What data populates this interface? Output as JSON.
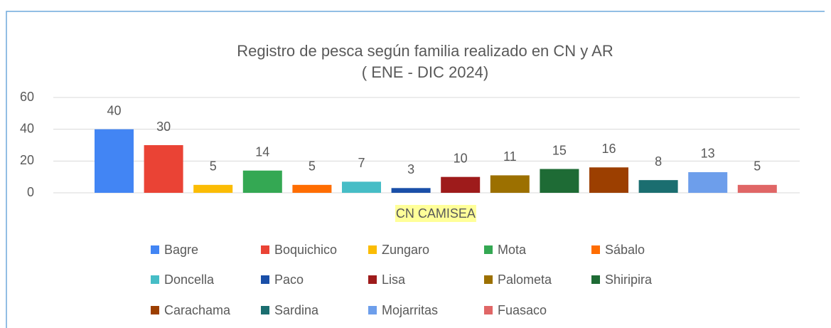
{
  "chart_data": {
    "type": "bar",
    "title": "Registro de pesca según familia realizado en CN y AR",
    "subtitle": "( ENE - DIC 2024)",
    "categories": [
      "CN CAMISEA"
    ],
    "series": [
      {
        "name": "Bagre",
        "color": "#4285f4",
        "values": [
          40
        ]
      },
      {
        "name": "Boquichico",
        "color": "#ea4335",
        "values": [
          30
        ]
      },
      {
        "name": "Zungaro",
        "color": "#fbbc04",
        "values": [
          5
        ]
      },
      {
        "name": "Mota",
        "color": "#34a853",
        "values": [
          14
        ]
      },
      {
        "name": "Sábalo",
        "color": "#ff6d01",
        "values": [
          5
        ]
      },
      {
        "name": "Doncella",
        "color": "#46bdc6",
        "values": [
          7
        ]
      },
      {
        "name": "Paco",
        "color": "#1a4fa8",
        "values": [
          3
        ]
      },
      {
        "name": "Lisa",
        "color": "#9e1b1b",
        "values": [
          10
        ]
      },
      {
        "name": "Palometa",
        "color": "#9c7000",
        "values": [
          11
        ]
      },
      {
        "name": "Shiripira",
        "color": "#1e6b35",
        "values": [
          15
        ]
      },
      {
        "name": "Carachama",
        "color": "#9c3f00",
        "values": [
          16
        ]
      },
      {
        "name": "Sardina",
        "color": "#1b6e70",
        "values": [
          8
        ]
      },
      {
        "name": "Mojarritas",
        "color": "#6d9eeb",
        "values": [
          13
        ]
      },
      {
        "name": "Fuasaco",
        "color": "#e06666",
        "values": [
          5
        ]
      }
    ],
    "ylim": [
      0,
      60
    ],
    "yticks": [
      0,
      20,
      40,
      60
    ],
    "grid": true,
    "legend": "bottom"
  }
}
